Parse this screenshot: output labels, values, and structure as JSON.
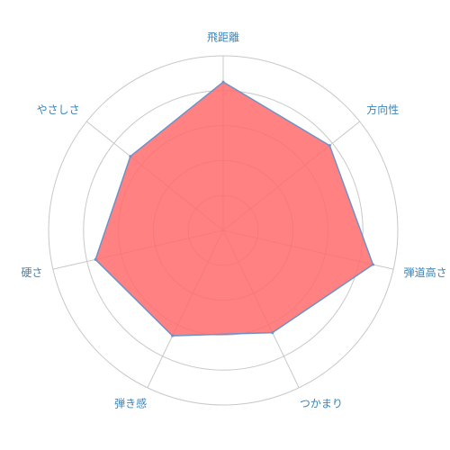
{
  "chart_data": {
    "type": "radar",
    "axes": [
      "飛距離",
      "方向性",
      "弾道高さ",
      "つかまり",
      "弾き感",
      "硬さ",
      "やさしさ"
    ],
    "values": [
      8.5,
      7.8,
      8.8,
      6.5,
      6.7,
      7.5,
      6.8
    ],
    "rmax": 10,
    "ring_count": 5,
    "series_color": "#ff6b6b",
    "series_stroke": "#6b93c8",
    "grid_color": "#c8c8c8",
    "spoke_color": "#c8c8c8",
    "label_color": "#3a84b8",
    "grid": true,
    "legend": "none"
  }
}
